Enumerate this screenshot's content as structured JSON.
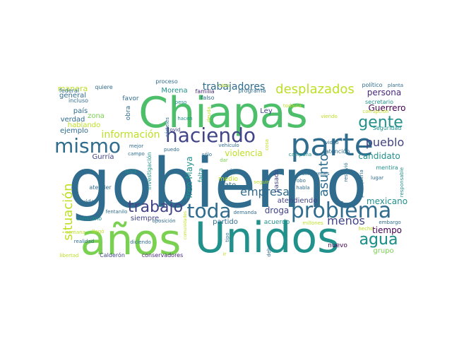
{
  "palette": {
    "green": "#4dbf6b",
    "lightgreen": "#7ad151",
    "lime": "#bddf26",
    "teal": "#21918c",
    "seagreen": "#2a9a86",
    "blue": "#3b5998",
    "steel": "#2f6c8e",
    "navy": "#31688e",
    "indigo": "#414487",
    "purple": "#482878",
    "darkpurple": "#440154"
  },
  "words": [
    {
      "text": "gobierno",
      "color": "steel"
    },
    {
      "text": "Chiapas",
      "color": "green"
    },
    {
      "text": "Unidos",
      "color": "teal"
    },
    {
      "text": "años",
      "color": "lightgreen"
    },
    {
      "text": "parte",
      "color": "steel"
    },
    {
      "text": "problema",
      "color": "steel"
    },
    {
      "text": "haciendo",
      "color": "indigo"
    },
    {
      "text": "mismo",
      "color": "steel"
    },
    {
      "text": "toda",
      "color": "steel"
    },
    {
      "text": "gente",
      "color": "teal"
    },
    {
      "text": "situación",
      "color": "lime"
    },
    {
      "text": "desplazados",
      "color": "lime"
    },
    {
      "text": "trabajo",
      "color": "indigo"
    },
    {
      "text": "agua",
      "color": "teal"
    },
    {
      "text": "información",
      "color": "lime"
    },
    {
      "text": "asunto",
      "color": "steel"
    },
    {
      "text": "empresa",
      "color": "steel"
    },
    {
      "text": "pueblo",
      "color": "indigo"
    },
    {
      "text": "trabajadores",
      "color": "steel"
    },
    {
      "text": "menos",
      "color": "indigo"
    },
    {
      "text": "Tren Maya",
      "color": "teal"
    },
    {
      "text": "violencia",
      "color": "lime"
    },
    {
      "text": "droga",
      "color": "indigo"
    },
    {
      "text": "candidato",
      "color": "teal"
    },
    {
      "text": "mexicano",
      "color": "teal"
    },
    {
      "text": "persona",
      "color": "purple"
    },
    {
      "text": "Guerrero",
      "color": "darkpurple"
    },
    {
      "text": "tiempo",
      "color": "darkpurple"
    },
    {
      "text": "agua",
      "color": "teal"
    },
    {
      "text": "manera",
      "color": "lime"
    },
    {
      "text": "general",
      "color": "steel"
    },
    {
      "text": "país",
      "color": "steel"
    },
    {
      "text": "verdad",
      "color": "steel"
    },
    {
      "text": "ejemplo",
      "color": "steel"
    },
    {
      "text": "hablando",
      "color": "lime"
    },
    {
      "text": "Morena",
      "color": "teal"
    },
    {
      "text": "Ley",
      "color": "indigo"
    },
    {
      "text": "atendiendo",
      "color": "indigo"
    },
    {
      "text": "partido",
      "color": "steel"
    },
    {
      "text": "dato",
      "color": "steel"
    },
    {
      "text": "siempre",
      "color": "indigo"
    },
    {
      "text": "grupo",
      "color": "lightgreen"
    },
    {
      "text": "nuevo",
      "color": "darkpurple"
    },
    {
      "text": "acuerdo",
      "color": "teal"
    },
    {
      "text": "pasado",
      "color": "indigo"
    },
    {
      "text": "falta",
      "color": "teal"
    },
    {
      "text": "Gurría",
      "color": "indigo"
    },
    {
      "text": "medio",
      "color": "lime"
    },
    {
      "text": "zona",
      "color": "lightgreen"
    },
    {
      "text": "incluso",
      "color": "steel"
    },
    {
      "text": "favor",
      "color": "steel"
    },
    {
      "text": "obra",
      "color": "steel"
    },
    {
      "text": "proceso",
      "color": "steel"
    },
    {
      "text": "quiere",
      "color": "steel"
    },
    {
      "text": "federal",
      "color": "steel"
    },
    {
      "text": "familia",
      "color": "purple"
    },
    {
      "text": "falso",
      "color": "steel"
    },
    {
      "text": "programa",
      "color": "steel"
    },
    {
      "text": "político",
      "color": "steel"
    },
    {
      "text": "planta",
      "color": "steel"
    },
    {
      "text": "secretario",
      "color": "teal"
    },
    {
      "text": "Seguridad",
      "color": "teal"
    },
    {
      "text": "mentira",
      "color": "teal"
    },
    {
      "text": "video",
      "color": "steel"
    },
    {
      "text": "atención",
      "color": "steel"
    },
    {
      "text": "campaña",
      "color": "teal"
    },
    {
      "text": "cosa",
      "color": "lime"
    },
    {
      "text": "hacen",
      "color": "teal"
    },
    {
      "text": "peso",
      "color": "teal"
    },
    {
      "text": "deuda",
      "color": "lime"
    },
    {
      "text": "todavía",
      "color": "lime"
    },
    {
      "text": "viendo",
      "color": "lime"
    },
    {
      "text": "covid",
      "color": "indigo"
    },
    {
      "text": "mejor",
      "color": "steel"
    },
    {
      "text": "campo",
      "color": "steel"
    },
    {
      "text": "puedo",
      "color": "steel"
    },
    {
      "text": "vehículo",
      "color": "steel"
    },
    {
      "text": "sólo",
      "color": "steel"
    },
    {
      "text": "dar",
      "color": "lightgreen"
    },
    {
      "text": "vía",
      "color": "steel"
    },
    {
      "text": "seguir",
      "color": "lime"
    },
    {
      "text": "salir",
      "color": "steel"
    },
    {
      "text": "robo",
      "color": "steel"
    },
    {
      "text": "habla",
      "color": "steel"
    },
    {
      "text": "jóvenes",
      "color": "steel"
    },
    {
      "text": "millones",
      "color": "lime"
    },
    {
      "text": "lugar",
      "color": "steel"
    },
    {
      "text": "responsable",
      "color": "teal"
    },
    {
      "text": "embargo",
      "color": "steel"
    },
    {
      "text": "hecho",
      "color": "lime"
    },
    {
      "text": "atender",
      "color": "steel"
    },
    {
      "text": "vida",
      "color": "steel"
    },
    {
      "text": "ojalá",
      "color": "teal"
    },
    {
      "text": "consumo",
      "color": "teal"
    },
    {
      "text": "fentanilo",
      "color": "steel"
    },
    {
      "text": "realidad",
      "color": "steel"
    },
    {
      "text": "diciendo",
      "color": "steel"
    },
    {
      "text": "oposición",
      "color": "steel"
    },
    {
      "text": "demanda",
      "color": "steel"
    },
    {
      "text": "tipo",
      "color": "steel"
    },
    {
      "text": "ir",
      "color": "lime"
    },
    {
      "text": "Calderón",
      "color": "indigo"
    },
    {
      "text": "conservadores",
      "color": "purple"
    },
    {
      "text": "libertad",
      "color": "lime"
    },
    {
      "text": "semana",
      "color": "lime"
    },
    {
      "text": "llegó",
      "color": "lime"
    },
    {
      "text": "debe",
      "color": "steel"
    },
    {
      "text": "investigación",
      "color": "teal"
    },
    {
      "text": "cárteles",
      "color": "steel"
    },
    {
      "text": "resolvió",
      "color": "steel"
    },
    {
      "text": "politiquería",
      "color": "steel"
    },
    {
      "text": "comunidades",
      "color": "lime"
    },
    {
      "text": "corrupción",
      "color": "lime"
    },
    {
      "text": "casa",
      "color": "lime"
    }
  ]
}
